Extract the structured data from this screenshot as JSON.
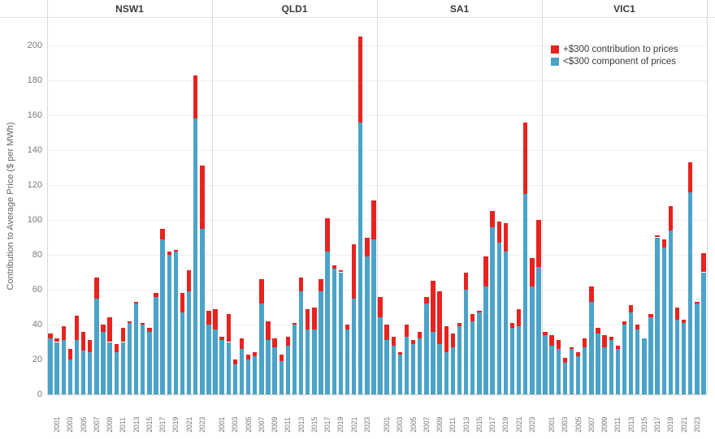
{
  "chart_data": {
    "type": "bar",
    "stacked": true,
    "ylabel": "Contribution to Average Price ($ per MWh)",
    "ylim": [
      0,
      200
    ],
    "yticks": [
      0,
      20,
      40,
      60,
      80,
      100,
      120,
      140,
      160,
      180,
      200
    ],
    "years": [
      2000,
      2001,
      2002,
      2003,
      2004,
      2005,
      2006,
      2007,
      2008,
      2009,
      2010,
      2011,
      2012,
      2013,
      2014,
      2015,
      2016,
      2017,
      2018,
      2019,
      2020,
      2021,
      2022,
      2023,
      2024
    ],
    "xtick_years": [
      2001,
      2003,
      2005,
      2007,
      2009,
      2011,
      2013,
      2015,
      2017,
      2019,
      2021,
      2023
    ],
    "grid": "horizontal-light",
    "legend_position": "top-right",
    "legend": [
      {
        "label": "+$300 contribution to prices",
        "color": "#e8231f"
      },
      {
        "label": "<$300 component of prices",
        "color": "#4ba3c9"
      }
    ],
    "panels": [
      {
        "name": "NSW1",
        "below300": [
          32,
          30,
          31,
          20,
          31,
          25,
          24,
          55,
          36,
          30,
          24,
          30,
          41,
          52,
          40,
          36,
          56,
          89,
          80,
          82,
          47,
          59,
          158,
          95,
          40
        ],
        "above300": [
          3,
          2,
          8,
          6,
          14,
          11,
          7,
          12,
          4,
          14,
          5,
          8,
          1,
          1,
          1,
          2,
          2,
          6,
          2,
          1,
          11,
          12,
          25,
          36,
          8
        ]
      },
      {
        "name": "QLD1",
        "below300": [
          37,
          31,
          30,
          17,
          26,
          20,
          22,
          52,
          31,
          27,
          19,
          28,
          40,
          59,
          37,
          37,
          59,
          82,
          72,
          70,
          37,
          55,
          156,
          79,
          89
        ],
        "above300": [
          12,
          2,
          16,
          3,
          6,
          3,
          2,
          14,
          11,
          5,
          4,
          5,
          1,
          8,
          12,
          13,
          7,
          19,
          2,
          1,
          3,
          31,
          49,
          11,
          22
        ]
      },
      {
        "name": "SA1",
        "below300": [
          44,
          31,
          28,
          23,
          33,
          29,
          32,
          52,
          36,
          29,
          24,
          27,
          39,
          60,
          42,
          47,
          62,
          96,
          87,
          82,
          38,
          39,
          115,
          62,
          73
        ],
        "above300": [
          12,
          9,
          5,
          1,
          7,
          2,
          4,
          4,
          29,
          30,
          15,
          8,
          2,
          10,
          4,
          1,
          17,
          9,
          12,
          16,
          3,
          10,
          41,
          16,
          27
        ]
      },
      {
        "name": "VIC1",
        "below300": [
          34,
          28,
          26,
          18,
          26,
          22,
          27,
          53,
          35,
          27,
          31,
          26,
          40,
          47,
          37,
          32,
          44,
          90,
          84,
          94,
          43,
          41,
          116,
          52,
          70
        ],
        "above300": [
          2,
          6,
          5,
          3,
          1,
          2,
          5,
          9,
          3,
          7,
          2,
          2,
          2,
          4,
          3,
          0,
          2,
          1,
          5,
          14,
          7,
          2,
          17,
          1,
          11
        ]
      }
    ]
  },
  "colors": {
    "background": "#ffffff",
    "separator": "#d9d9d9",
    "gridline": "#efefef",
    "axis_line": "#c9c9c9",
    "tick_text": "#7a7a7a",
    "title_text": "#3b3b3b"
  }
}
